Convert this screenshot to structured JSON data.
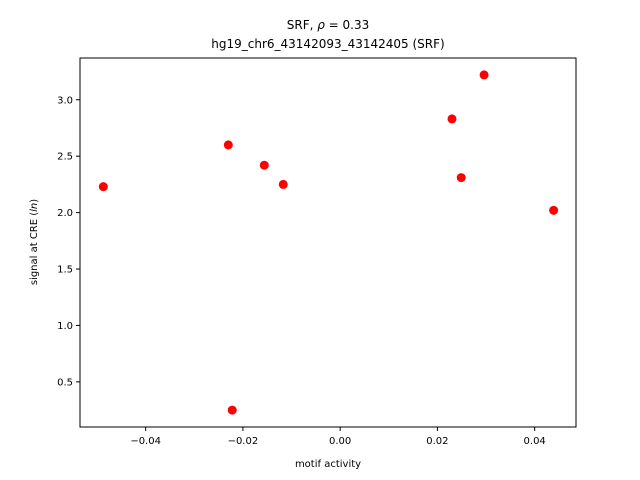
{
  "chart_data": {
    "type": "scatter",
    "title_line1_prefix": "SRF, ",
    "title_line1_rho": "ρ",
    "title_line1_suffix": " = 0.33",
    "title_line2": "hg19_chr6_43142093_43142405 (SRF)",
    "xlabel": "motif activity",
    "ylabel_prefix": "signal at CRE (",
    "ylabel_italic": "ln",
    "ylabel_suffix": ")",
    "xlim": [
      -0.0535,
      0.0485
    ],
    "ylim": [
      0.1,
      3.37
    ],
    "x_ticks": [
      -0.04,
      -0.02,
      0.0,
      0.02,
      0.04
    ],
    "x_tick_labels": [
      "−0.04",
      "−0.02",
      "0.00",
      "0.02",
      "0.04"
    ],
    "y_ticks": [
      0.5,
      1.0,
      1.5,
      2.0,
      2.5,
      3.0
    ],
    "y_tick_labels": [
      "0.5",
      "1.0",
      "1.5",
      "2.0",
      "2.5",
      "3.0"
    ],
    "grid": false,
    "marker_color": "#ff0000",
    "points": [
      {
        "x": -0.0487,
        "y": 2.23
      },
      {
        "x": -0.023,
        "y": 2.6
      },
      {
        "x": -0.0222,
        "y": 0.25
      },
      {
        "x": -0.0156,
        "y": 2.42
      },
      {
        "x": -0.0117,
        "y": 2.25
      },
      {
        "x": 0.023,
        "y": 2.83
      },
      {
        "x": 0.0249,
        "y": 2.31
      },
      {
        "x": 0.0296,
        "y": 3.22
      },
      {
        "x": 0.0439,
        "y": 2.02
      }
    ]
  }
}
